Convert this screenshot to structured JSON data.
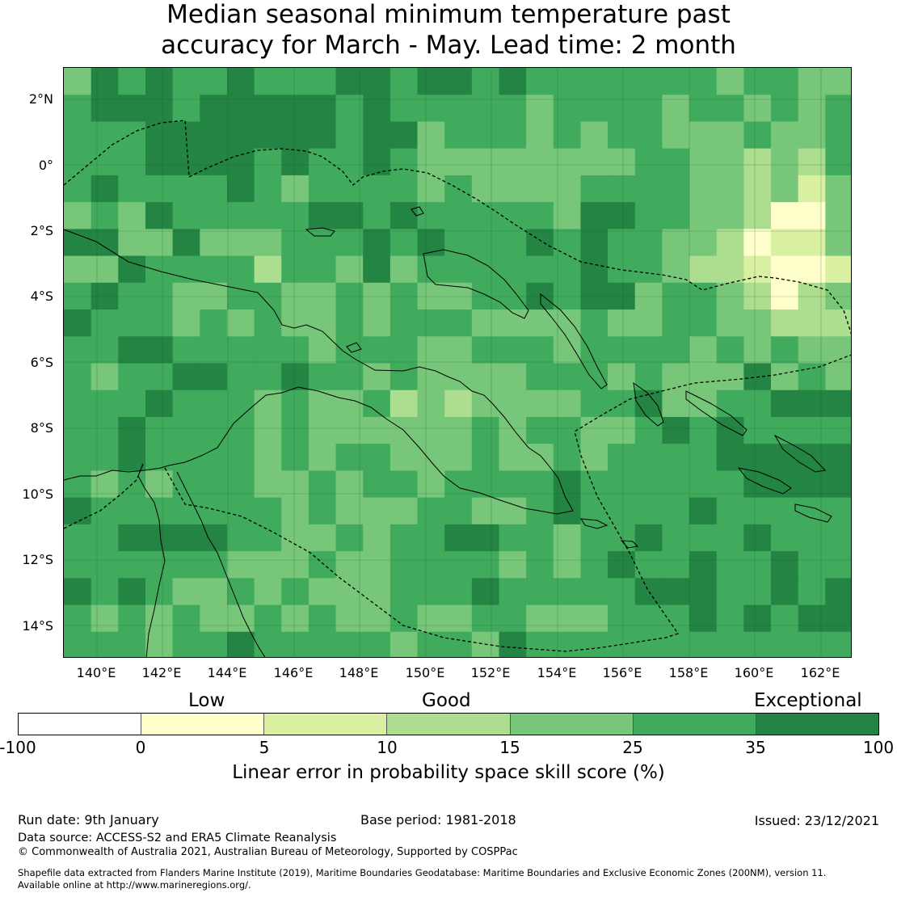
{
  "title": {
    "line1": "Median seasonal minimum temperature past",
    "line2": "accuracy for March - May. Lead time: 2 month"
  },
  "map": {
    "lat_labels": [
      "2°N",
      "0°",
      "2°S",
      "4°S",
      "6°S",
      "8°S",
      "10°S",
      "12°S",
      "14°S"
    ],
    "lon_labels": [
      "140°E",
      "142°E",
      "144°E",
      "146°E",
      "148°E",
      "150°E",
      "152°E",
      "154°E",
      "156°E",
      "158°E",
      "160°E",
      "162°E"
    ],
    "extent": {
      "lon_min": 139,
      "lon_max": 163,
      "lat_min": -15,
      "lat_max": 3
    }
  },
  "legend": {
    "categories": [
      "Low",
      "Good",
      "Exceptional"
    ],
    "ticks": [
      "-100",
      "0",
      "5",
      "10",
      "15",
      "25",
      "35",
      "100"
    ],
    "colors": [
      "#ffffff",
      "#ffffcc",
      "#d9f0a3",
      "#addd8e",
      "#78c679",
      "#41ab5d",
      "#238443"
    ],
    "label": "Linear error in probability space skill score (%)"
  },
  "footer": {
    "run_date": "Run date: 9th January",
    "base_period": "Base period: 1981-2018",
    "issued": "Issued: 23/12/2021",
    "data_source": "Data source: ACCESS-S2 and ERA5 Climate Reanalysis",
    "copyright": "© Commonwealth of Australia 2021, Australian Bureau of Meteorology, Supported by COSPPac",
    "shapefile_line1": "Shapefile data extracted from Flanders Marine Institute (2019), Maritime Boundaries Geodatabase: Maritime Boundaries and Exclusive Economic Zones (200NM), version 11.",
    "shapefile_line2": "Available online at http://www.marineregions.org/."
  }
}
